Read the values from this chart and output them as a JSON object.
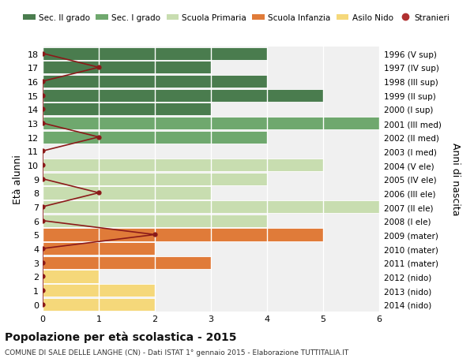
{
  "ages": [
    18,
    17,
    16,
    15,
    14,
    13,
    12,
    11,
    10,
    9,
    8,
    7,
    6,
    5,
    4,
    3,
    2,
    1,
    0
  ],
  "year_labels": [
    "1996 (V sup)",
    "1997 (IV sup)",
    "1998 (III sup)",
    "1999 (II sup)",
    "2000 (I sup)",
    "2001 (III med)",
    "2002 (II med)",
    "2003 (I med)",
    "2004 (V ele)",
    "2005 (IV ele)",
    "2006 (III ele)",
    "2007 (II ele)",
    "2008 (I ele)",
    "2009 (mater)",
    "2010 (mater)",
    "2011 (mater)",
    "2012 (nido)",
    "2013 (nido)",
    "2014 (nido)"
  ],
  "bar_values": [
    4,
    3,
    4,
    5,
    3,
    6,
    4,
    0,
    5,
    4,
    3,
    6,
    4,
    5,
    2,
    3,
    1,
    2,
    2
  ],
  "bar_colors": [
    "#4a7c4e",
    "#4a7c4e",
    "#4a7c4e",
    "#4a7c4e",
    "#4a7c4e",
    "#6fa86e",
    "#6fa86e",
    "#6fa86e",
    "#c8ddb0",
    "#c8ddb0",
    "#c8ddb0",
    "#c8ddb0",
    "#c8ddb0",
    "#e07b39",
    "#e07b39",
    "#e07b39",
    "#f5d87a",
    "#f5d87a",
    "#f5d87a"
  ],
  "stranieri_values": [
    0,
    1,
    0,
    0,
    0,
    0,
    1,
    0,
    0,
    0,
    1,
    0,
    0,
    2,
    0,
    0,
    0,
    0,
    0
  ],
  "legend_labels": [
    "Sec. II grado",
    "Sec. I grado",
    "Scuola Primaria",
    "Scuola Infanzia",
    "Asilo Nido",
    "Stranieri"
  ],
  "legend_colors": [
    "#4a7c4e",
    "#6fa86e",
    "#c8ddb0",
    "#e07b39",
    "#f5d87a",
    "#b03030"
  ],
  "ylabel_left": "Età alunni",
  "ylabel_right": "Anni di nascita",
  "title": "Popolazione per età scolastica - 2015",
  "subtitle": "COMUNE DI SALE DELLE LANGHE (CN) - Dati ISTAT 1° gennaio 2015 - Elaborazione TUTTITALIA.IT",
  "xlim": [
    0,
    6
  ],
  "plot_bg_color": "#f0f0f0",
  "fig_bg_color": "#ffffff",
  "grid_color": "#ffffff",
  "stranieri_color": "#8b1a1a",
  "stranieri_dot_color": "#8b1a1a"
}
